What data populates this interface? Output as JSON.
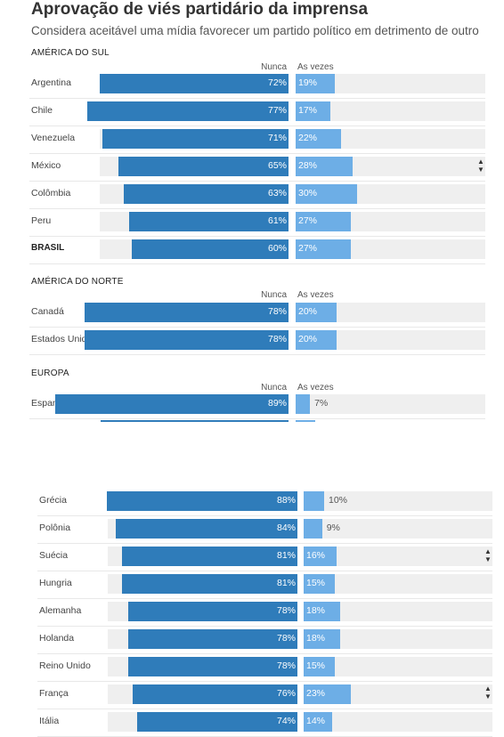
{
  "chart_data": {
    "type": "bar",
    "title": "Aprovação de viés partidário da imprensa",
    "subtitle": "Considera aceitável uma mídia favorecer um partido político em detrimento de outro",
    "column_labels": {
      "nunca": "Nunca",
      "as_vezes": "As vezes"
    },
    "series_colors": {
      "nunca": "#2f7cba",
      "as_vezes": "#6daee6"
    },
    "groups": [
      {
        "region": "AMÉRICA DO SUL",
        "rows": [
          {
            "country": "Argentina",
            "nunca": 72,
            "as_vezes": 19,
            "nunca_label": "72%",
            "as_vezes_label": "19%"
          },
          {
            "country": "Chile",
            "nunca": 77,
            "as_vezes": 17,
            "nunca_label": "77%",
            "as_vezes_label": "17%"
          },
          {
            "country": "Venezuela",
            "nunca": 71,
            "as_vezes": 22,
            "nunca_label": "71%",
            "as_vezes_label": "22%"
          },
          {
            "country": "México",
            "nunca": 65,
            "as_vezes": 28,
            "nunca_label": "65%",
            "as_vezes_label": "28%"
          },
          {
            "country": "Colômbia",
            "nunca": 63,
            "as_vezes": 30,
            "nunca_label": "63%",
            "as_vezes_label": "30%"
          },
          {
            "country": "Peru",
            "nunca": 61,
            "as_vezes": 27,
            "nunca_label": "61%",
            "as_vezes_label": "27%"
          },
          {
            "country": "BRASIL",
            "nunca": 60,
            "as_vezes": 27,
            "nunca_label": "60%",
            "as_vezes_label": "27%",
            "highlight": true
          }
        ]
      },
      {
        "region": "AMÉRICA DO NORTE",
        "rows": [
          {
            "country": "Canadá",
            "nunca": 78,
            "as_vezes": 20,
            "nunca_label": "78%",
            "as_vezes_label": "20%"
          },
          {
            "country": "Estados Unidos",
            "nunca": 78,
            "as_vezes": 20,
            "nunca_label": "78%",
            "as_vezes_label": "20%"
          }
        ]
      },
      {
        "region": "EUROPA",
        "rows": [
          {
            "country": "Espanha",
            "nunca": 89,
            "as_vezes": 7,
            "nunca_label": "89%",
            "as_vezes_label": "7%"
          },
          {
            "country": "Grécia",
            "nunca": 88,
            "as_vezes": 10,
            "nunca_label": "88%",
            "as_vezes_label": "10%"
          },
          {
            "country": "Polônia",
            "nunca": 84,
            "as_vezes": 9,
            "nunca_label": "84%",
            "as_vezes_label": "9%"
          },
          {
            "country": "Suécia",
            "nunca": 81,
            "as_vezes": 16,
            "nunca_label": "81%",
            "as_vezes_label": "16%"
          },
          {
            "country": "Hungria",
            "nunca": 81,
            "as_vezes": 15,
            "nunca_label": "81%",
            "as_vezes_label": "15%"
          },
          {
            "country": "Alemanha",
            "nunca": 78,
            "as_vezes": 18,
            "nunca_label": "78%",
            "as_vezes_label": "18%"
          },
          {
            "country": "Holanda",
            "nunca": 78,
            "as_vezes": 18,
            "nunca_label": "78%",
            "as_vezes_label": "18%"
          },
          {
            "country": "Reino Unido",
            "nunca": 78,
            "as_vezes": 15,
            "nunca_label": "78%",
            "as_vezes_label": "15%"
          },
          {
            "country": "França",
            "nunca": 76,
            "as_vezes": 23,
            "nunca_label": "76%",
            "as_vezes_label": "23%"
          },
          {
            "country": "Itália",
            "nunca": 74,
            "as_vezes": 14,
            "nunca_label": "74%",
            "as_vezes_label": "14%"
          }
        ]
      }
    ]
  },
  "icons": {
    "scroll_up": "▲",
    "scroll_down": "▼"
  }
}
